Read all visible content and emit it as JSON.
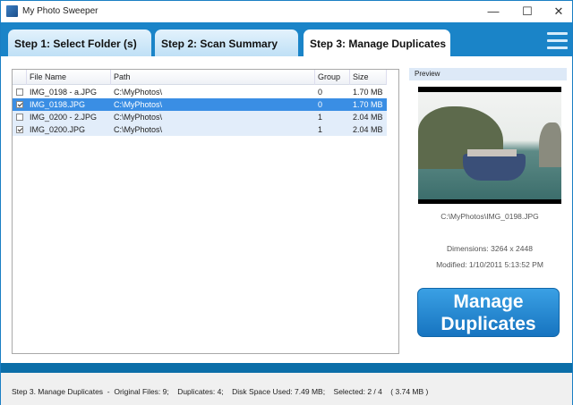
{
  "window": {
    "title": "My Photo Sweeper",
    "minimize": "—",
    "maximize": "☐",
    "close": "✕"
  },
  "tabs": [
    {
      "label": "Step 1: Select Folder (s)",
      "active": false
    },
    {
      "label": "Step 2: Scan Summary",
      "active": false
    },
    {
      "label": "Step 3: Manage Duplicates",
      "active": true
    }
  ],
  "table": {
    "columns": [
      "File Name",
      "Path",
      "Group",
      "Size"
    ],
    "rows": [
      {
        "checked": false,
        "name": "IMG_0198 - a.JPG",
        "path": "C:\\MyPhotos\\",
        "group": "0",
        "size": "1.70 MB",
        "selected": false
      },
      {
        "checked": true,
        "name": "IMG_0198.JPG",
        "path": "C:\\MyPhotos\\",
        "group": "0",
        "size": "1.70 MB",
        "selected": true
      },
      {
        "checked": false,
        "name": "IMG_0200 - 2.JPG",
        "path": "C:\\MyPhotos\\",
        "group": "1",
        "size": "2.04 MB",
        "selected": false
      },
      {
        "checked": true,
        "name": "IMG_0200.JPG",
        "path": "C:\\MyPhotos\\",
        "group": "1",
        "size": "2.04 MB",
        "selected": false
      }
    ]
  },
  "preview": {
    "header": "Preview",
    "path": "C:\\MyPhotos\\IMG_0198.JPG",
    "dimensions": "Dimensions: 3264 x 2448",
    "modified": "Modified: 1/10/2011 5:13:52 PM"
  },
  "manage_button": {
    "line1": "Manage",
    "line2": "Duplicates"
  },
  "status": "Step 3. Manage Duplicates  -  Original Files: 9;    Duplicates: 4;    Disk Space Used: 7.49 MB;    Selected: 2 / 4    ( 3.74 MB )",
  "colors": {
    "accent": "#1a84c8",
    "selection": "#3a8ee4",
    "button": "#1774c0"
  }
}
